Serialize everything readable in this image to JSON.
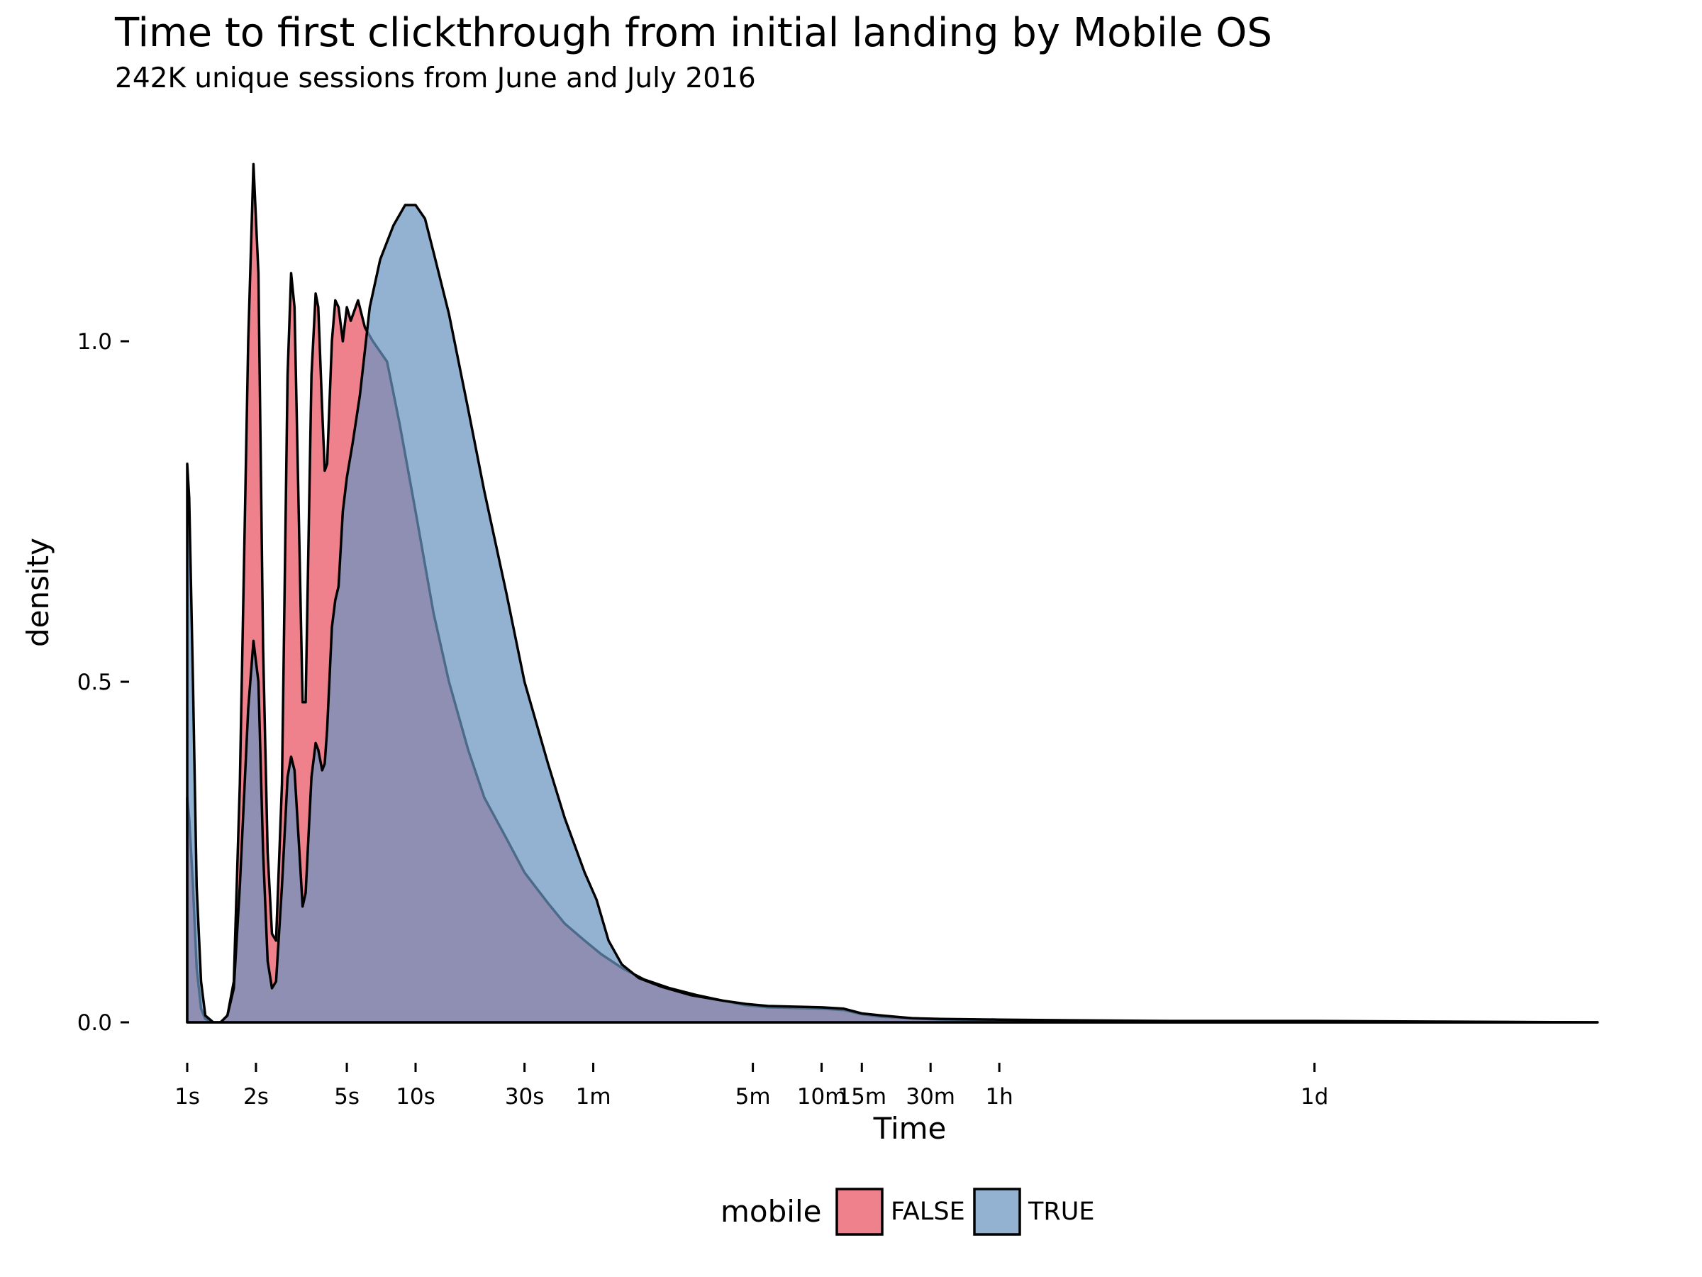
{
  "chart_data": {
    "type": "area",
    "title": "Time to first clickthrough from initial landing by Mobile OS",
    "subtitle": "242K unique sessions from June and July 2016",
    "xlabel": "Time",
    "ylabel": "density",
    "x_scale": "log10 seconds",
    "xlim_seconds": [
      1,
      1500000
    ],
    "ylim": [
      0,
      1.3
    ],
    "y_ticks": [
      0.0,
      0.5,
      1.0
    ],
    "y_tick_labels": [
      "0.0",
      "0.5",
      "1.0"
    ],
    "x_ticks_seconds": [
      1,
      2,
      5,
      10,
      30,
      60,
      300,
      600,
      900,
      1800,
      3600,
      86400
    ],
    "x_tick_labels": [
      "1s",
      "2s",
      "5s",
      "10s",
      "30s",
      "1m",
      "5m",
      "10m",
      "15m",
      "30m",
      "1h",
      "1d"
    ],
    "grid": false,
    "legend": {
      "title": "mobile",
      "position": "bottom",
      "entries": [
        "FALSE",
        "TRUE"
      ]
    },
    "colors": {
      "FALSE": "#e8505f",
      "TRUE": "#6a94c0",
      "outline": "#000000"
    },
    "series": [
      {
        "name": "FALSE",
        "points": [
          [
            1.0,
            0.33
          ],
          [
            1.02,
            0.3
          ],
          [
            1.06,
            0.2
          ],
          [
            1.1,
            0.08
          ],
          [
            1.15,
            0.02
          ],
          [
            1.2,
            0.005
          ],
          [
            1.3,
            0.0
          ],
          [
            1.4,
            0.0
          ],
          [
            1.5,
            0.01
          ],
          [
            1.6,
            0.06
          ],
          [
            1.7,
            0.35
          ],
          [
            1.85,
            1.0
          ],
          [
            1.95,
            1.26
          ],
          [
            2.05,
            1.1
          ],
          [
            2.15,
            0.55
          ],
          [
            2.25,
            0.25
          ],
          [
            2.35,
            0.13
          ],
          [
            2.45,
            0.12
          ],
          [
            2.6,
            0.35
          ],
          [
            2.75,
            0.95
          ],
          [
            2.85,
            1.1
          ],
          [
            2.95,
            1.05
          ],
          [
            3.1,
            0.7
          ],
          [
            3.2,
            0.47
          ],
          [
            3.3,
            0.47
          ],
          [
            3.5,
            0.95
          ],
          [
            3.65,
            1.07
          ],
          [
            3.75,
            1.05
          ],
          [
            3.9,
            0.9
          ],
          [
            4.0,
            0.81
          ],
          [
            4.1,
            0.82
          ],
          [
            4.3,
            1.0
          ],
          [
            4.45,
            1.06
          ],
          [
            4.6,
            1.05
          ],
          [
            4.8,
            1.0
          ],
          [
            5.0,
            1.05
          ],
          [
            5.2,
            1.03
          ],
          [
            5.6,
            1.06
          ],
          [
            6.0,
            1.02
          ],
          [
            6.5,
            1.0
          ],
          [
            7.5,
            0.97
          ],
          [
            8.5,
            0.88
          ],
          [
            10.0,
            0.75
          ],
          [
            12.0,
            0.6
          ],
          [
            14.0,
            0.5
          ],
          [
            17.0,
            0.4
          ],
          [
            20.0,
            0.33
          ],
          [
            25.0,
            0.27
          ],
          [
            30.0,
            0.22
          ],
          [
            38.0,
            0.175
          ],
          [
            45.0,
            0.145
          ],
          [
            55.0,
            0.12
          ],
          [
            65.0,
            0.1
          ],
          [
            80.0,
            0.08
          ],
          [
            100.0,
            0.063
          ],
          [
            130.0,
            0.05
          ],
          [
            170.0,
            0.04
          ],
          [
            220.0,
            0.032
          ],
          [
            280.0,
            0.025
          ],
          [
            350.0,
            0.022
          ],
          [
            450.0,
            0.021
          ],
          [
            600.0,
            0.02
          ],
          [
            750.0,
            0.018
          ],
          [
            900.0,
            0.012
          ],
          [
            1100.0,
            0.008
          ],
          [
            1500.0,
            0.006
          ],
          [
            2000.0,
            0.004
          ],
          [
            3600.0,
            0.003
          ],
          [
            7200.0,
            0.002
          ],
          [
            20000.0,
            0.001
          ],
          [
            86400.0,
            0.001
          ],
          [
            300000.0,
            0.0005
          ],
          [
            1500000.0,
            0.0
          ]
        ]
      },
      {
        "name": "TRUE",
        "points": [
          [
            1.0,
            0.82
          ],
          [
            1.02,
            0.77
          ],
          [
            1.06,
            0.5
          ],
          [
            1.1,
            0.2
          ],
          [
            1.15,
            0.06
          ],
          [
            1.2,
            0.01
          ],
          [
            1.3,
            0.0
          ],
          [
            1.4,
            0.0
          ],
          [
            1.5,
            0.01
          ],
          [
            1.6,
            0.05
          ],
          [
            1.7,
            0.2
          ],
          [
            1.85,
            0.46
          ],
          [
            1.95,
            0.56
          ],
          [
            2.05,
            0.5
          ],
          [
            2.15,
            0.25
          ],
          [
            2.25,
            0.09
          ],
          [
            2.35,
            0.05
          ],
          [
            2.45,
            0.06
          ],
          [
            2.6,
            0.2
          ],
          [
            2.75,
            0.36
          ],
          [
            2.85,
            0.39
          ],
          [
            2.95,
            0.37
          ],
          [
            3.1,
            0.25
          ],
          [
            3.2,
            0.17
          ],
          [
            3.3,
            0.19
          ],
          [
            3.5,
            0.36
          ],
          [
            3.65,
            0.41
          ],
          [
            3.75,
            0.4
          ],
          [
            3.9,
            0.37
          ],
          [
            4.0,
            0.38
          ],
          [
            4.1,
            0.43
          ],
          [
            4.3,
            0.58
          ],
          [
            4.45,
            0.62
          ],
          [
            4.6,
            0.64
          ],
          [
            4.8,
            0.75
          ],
          [
            5.0,
            0.8
          ],
          [
            5.3,
            0.85
          ],
          [
            5.7,
            0.92
          ],
          [
            6.3,
            1.05
          ],
          [
            7.0,
            1.12
          ],
          [
            8.0,
            1.17
          ],
          [
            9.0,
            1.2
          ],
          [
            10.0,
            1.2
          ],
          [
            11.0,
            1.18
          ],
          [
            12.0,
            1.13
          ],
          [
            14.0,
            1.04
          ],
          [
            17.0,
            0.9
          ],
          [
            20.0,
            0.78
          ],
          [
            25.0,
            0.63
          ],
          [
            30.0,
            0.5
          ],
          [
            38.0,
            0.38
          ],
          [
            45.0,
            0.3
          ],
          [
            55.0,
            0.22
          ],
          [
            62.0,
            0.18
          ],
          [
            70.0,
            0.12
          ],
          [
            80.0,
            0.085
          ],
          [
            95.0,
            0.065
          ],
          [
            120.0,
            0.052
          ],
          [
            160.0,
            0.04
          ],
          [
            220.0,
            0.032
          ],
          [
            280.0,
            0.027
          ],
          [
            350.0,
            0.024
          ],
          [
            450.0,
            0.023
          ],
          [
            600.0,
            0.022
          ],
          [
            750.0,
            0.02
          ],
          [
            900.0,
            0.013
          ],
          [
            1100.0,
            0.01
          ],
          [
            1500.0,
            0.006
          ],
          [
            2000.0,
            0.005
          ],
          [
            3600.0,
            0.004
          ],
          [
            7200.0,
            0.003
          ],
          [
            20000.0,
            0.002
          ],
          [
            86400.0,
            0.002
          ],
          [
            300000.0,
            0.001
          ],
          [
            1500000.0,
            0.0
          ]
        ]
      }
    ]
  }
}
